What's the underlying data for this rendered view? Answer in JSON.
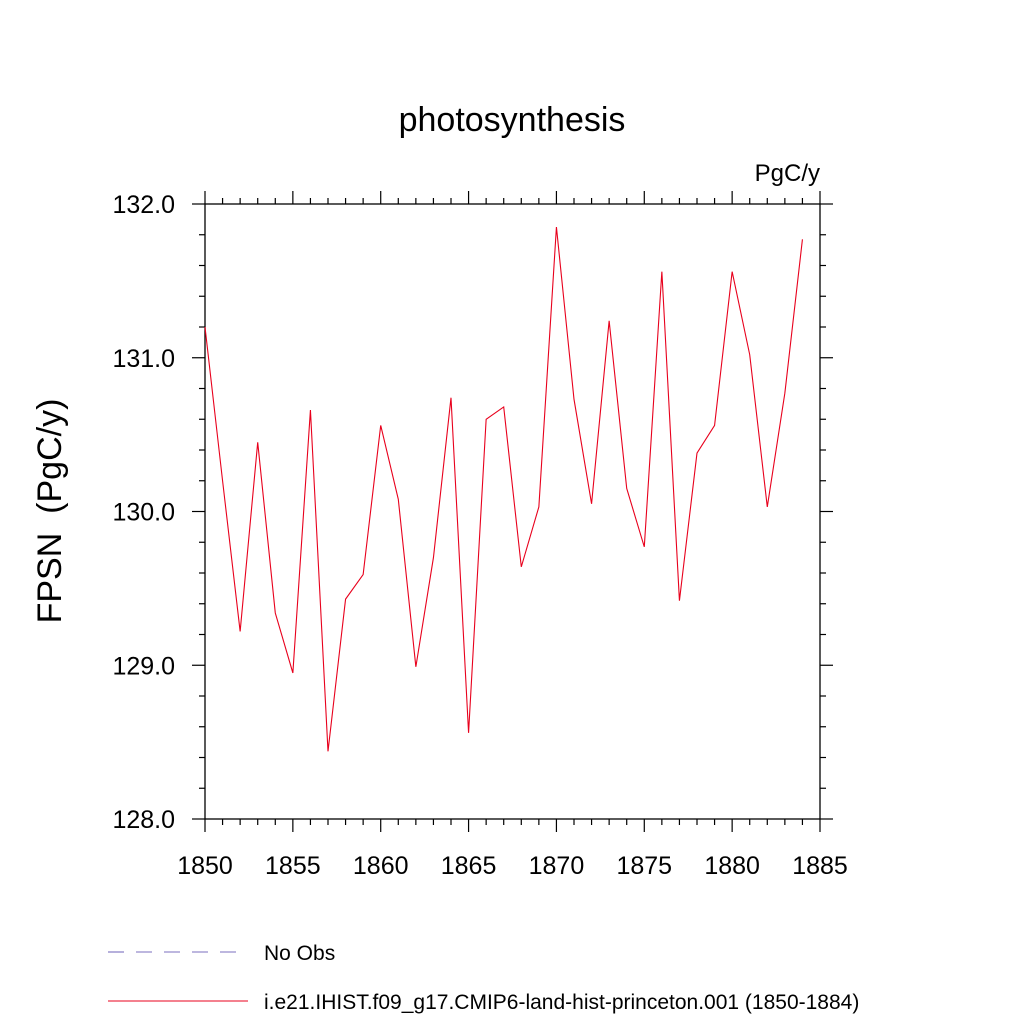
{
  "chart_data": {
    "type": "line",
    "title": "photosynthesis",
    "units_label": "PgC/y",
    "ylabel": "FPSN  (PgC/y)",
    "xlabel": "",
    "xlim": [
      1850,
      1885
    ],
    "ylim": [
      128.0,
      132.0
    ],
    "xticks": [
      "1850",
      "1855",
      "1860",
      "1865",
      "1870",
      "1875",
      "1880",
      "1885"
    ],
    "yticks": [
      "128.0",
      "129.0",
      "130.0",
      "131.0",
      "132.0"
    ],
    "grid": false,
    "legend_position": "bottom",
    "series": [
      {
        "name": "No Obs",
        "color": "#7b6fbf",
        "dash": "dashed",
        "x": [],
        "values": []
      },
      {
        "name": "i.e21.IHIST.f09_g17.CMIP6-land-hist-princeton.001 (1850-1884)",
        "color": "#e8001c",
        "dash": "solid",
        "x": [
          1850,
          1851,
          1852,
          1853,
          1854,
          1855,
          1856,
          1857,
          1858,
          1859,
          1860,
          1861,
          1862,
          1863,
          1864,
          1865,
          1866,
          1867,
          1868,
          1869,
          1870,
          1871,
          1872,
          1873,
          1874,
          1875,
          1876,
          1877,
          1878,
          1879,
          1880,
          1881,
          1882,
          1883,
          1884
        ],
        "values": [
          131.2,
          130.2,
          129.22,
          130.45,
          129.34,
          128.95,
          130.66,
          128.44,
          129.43,
          129.59,
          130.56,
          130.08,
          128.99,
          129.7,
          130.74,
          128.56,
          130.6,
          130.68,
          129.64,
          130.03,
          131.85,
          130.73,
          130.05,
          131.24,
          130.15,
          129.77,
          131.56,
          129.42,
          130.38,
          130.56,
          131.56,
          131.02,
          130.03,
          130.77,
          131.77
        ]
      }
    ]
  }
}
